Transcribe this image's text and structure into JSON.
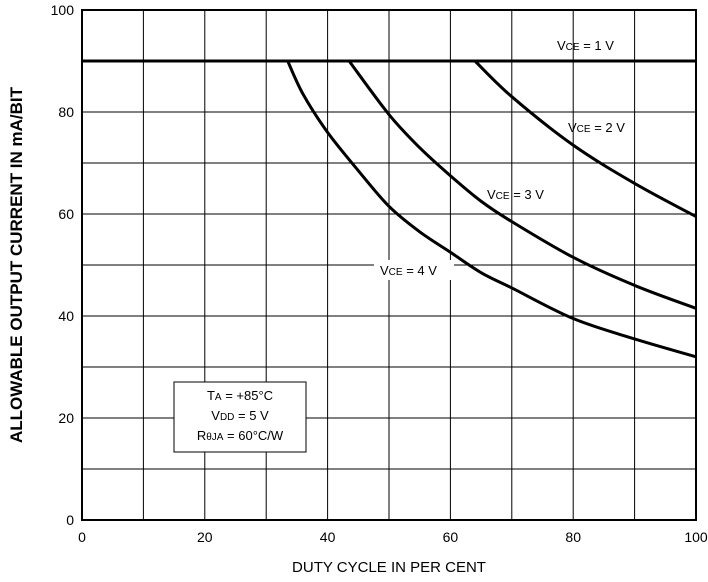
{
  "chart_data": {
    "type": "line",
    "title": "",
    "xlabel": "DUTY CYCLE IN PER CENT",
    "ylabel": "ALLOWABLE OUTPUT CURRENT IN mA/BIT",
    "xlim": [
      0,
      100
    ],
    "ylim": [
      0,
      100
    ],
    "x_ticks": [
      0,
      20,
      40,
      60,
      80,
      100
    ],
    "y_ticks": [
      0,
      20,
      40,
      60,
      80,
      100
    ],
    "x_grid_step": 10,
    "y_grid_step": 10,
    "grid": true,
    "series": [
      {
        "name": "VCE = 1 V",
        "label_main": "V",
        "label_sub": "CE",
        "label_rest": " = 1 V",
        "x": [
          0,
          100
        ],
        "y": [
          90,
          90
        ]
      },
      {
        "name": "VCE = 2 V",
        "label_main": "V",
        "label_sub": "CE",
        "label_rest": " = 2 V",
        "x": [
          64,
          70,
          80,
          90,
          100
        ],
        "y": [
          90,
          83,
          73.5,
          66,
          59.5
        ]
      },
      {
        "name": "VCE = 3 V",
        "label_main": "V",
        "label_sub": "CE",
        "label_rest": " = 3 V",
        "x": [
          43.5,
          50,
          55,
          60,
          65,
          70,
          80,
          90,
          100
        ],
        "y": [
          90,
          79.5,
          73,
          67.5,
          62.5,
          58.5,
          51.5,
          46,
          41.5
        ]
      },
      {
        "name": "VCE = 4 V",
        "label_main": "V",
        "label_sub": "CE",
        "label_rest": " = 4 V",
        "x": [
          33.5,
          36,
          40,
          45,
          50,
          55,
          60,
          65,
          70,
          80,
          90,
          100
        ],
        "y": [
          90,
          83.5,
          76,
          68.5,
          61.5,
          56.5,
          52.5,
          48.5,
          45.5,
          39.5,
          35.5,
          32
        ]
      }
    ],
    "conditions": [
      {
        "main": "T",
        "sub": "A",
        "rest": " = +85°C"
      },
      {
        "main": "V",
        "sub": "DD",
        "rest": " = 5 V"
      },
      {
        "main": "R",
        "sub": "θJA",
        "rest": " = 60°C/W"
      }
    ],
    "colors": {
      "line": "#000000",
      "grid": "#000000",
      "background": "#ffffff"
    }
  }
}
